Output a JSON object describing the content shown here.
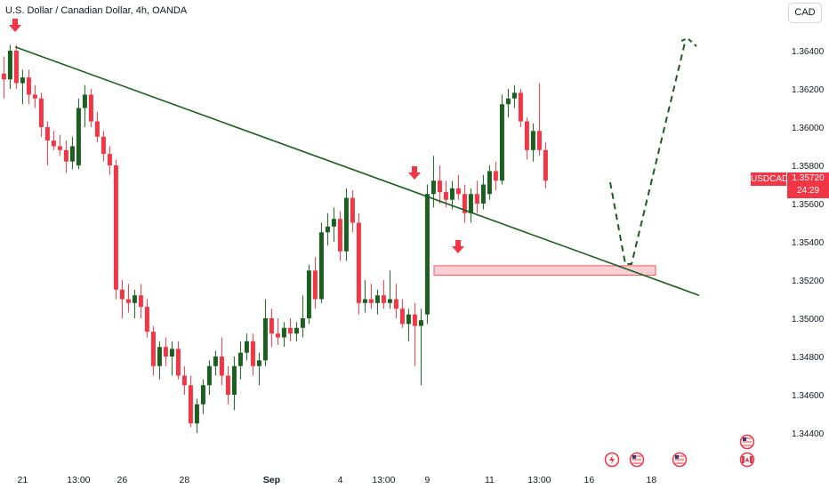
{
  "header": {
    "title": "U.S. Dollar / Canadian Dollar, 4h, OANDA",
    "currency": "CAD"
  },
  "price_tag": {
    "symbol": "USDCAD",
    "price": "1.35720",
    "countdown": "24:29"
  },
  "colors": {
    "up": "#1b5e20",
    "down": "#f23645",
    "trendline": "#1b5e20",
    "zone_fill": "#f8c8cc",
    "zone_border": "#f23645",
    "arrow": "#f23645"
  },
  "chart_data": {
    "type": "candlestick",
    "title": "U.S. Dollar / Canadian Dollar, 4h, OANDA",
    "symbol": "USDCAD",
    "timeframe": "4h",
    "ylim": [
      1.343,
      1.3668
    ],
    "y_ticks": [
      "1.36400",
      "1.36200",
      "1.36000",
      "1.35800",
      "1.35600",
      "1.35400",
      "1.35200",
      "1.35000",
      "1.34800",
      "1.34600",
      "1.34400"
    ],
    "y_tick_values": [
      1.364,
      1.362,
      1.36,
      1.358,
      1.356,
      1.354,
      1.352,
      1.35,
      1.348,
      1.346,
      1.344
    ],
    "x_ticks": [
      {
        "label": "21",
        "index": 3,
        "bold": false
      },
      {
        "label": "13:00",
        "index": 12,
        "bold": false
      },
      {
        "label": "26",
        "index": 19,
        "bold": false
      },
      {
        "label": "28",
        "index": 29,
        "bold": false
      },
      {
        "label": "Sep",
        "index": 43,
        "bold": true
      },
      {
        "label": "4",
        "index": 54,
        "bold": false
      },
      {
        "label": "13:00",
        "index": 61,
        "bold": false
      },
      {
        "label": "9",
        "index": 68,
        "bold": false
      },
      {
        "label": "11",
        "index": 78,
        "bold": false
      },
      {
        "label": "13:00",
        "index": 86,
        "bold": false
      },
      {
        "label": "16",
        "index": 94,
        "bold": false
      },
      {
        "label": "18",
        "index": 104,
        "bold": false
      }
    ],
    "candles": [
      [
        1.3628,
        1.3637,
        1.3615,
        1.3625
      ],
      [
        1.3625,
        1.3643,
        1.362,
        1.364
      ],
      [
        1.364,
        1.3643,
        1.362,
        1.3623
      ],
      [
        1.3623,
        1.363,
        1.3612,
        1.3626
      ],
      [
        1.3626,
        1.363,
        1.3612,
        1.3617
      ],
      [
        1.3617,
        1.3622,
        1.361,
        1.3615
      ],
      [
        1.3615,
        1.3618,
        1.3595,
        1.36
      ],
      [
        1.36,
        1.3603,
        1.358,
        1.3593
      ],
      [
        1.3593,
        1.3598,
        1.3588,
        1.359
      ],
      [
        1.359,
        1.3596,
        1.3585,
        1.3588
      ],
      [
        1.3588,
        1.3593,
        1.3576,
        1.3582
      ],
      [
        1.3582,
        1.3595,
        1.3578,
        1.359
      ],
      [
        1.358,
        1.3615,
        1.3578,
        1.361
      ],
      [
        1.361,
        1.3622,
        1.36,
        1.3617
      ],
      [
        1.3617,
        1.362,
        1.36,
        1.3603
      ],
      [
        1.3603,
        1.3608,
        1.3592,
        1.3595
      ],
      [
        1.3595,
        1.3598,
        1.3582,
        1.3586
      ],
      [
        1.3586,
        1.359,
        1.3575,
        1.358
      ],
      [
        1.358,
        1.3583,
        1.351,
        1.3515
      ],
      [
        1.3515,
        1.352,
        1.35,
        1.351
      ],
      [
        1.351,
        1.3518,
        1.3503,
        1.3508
      ],
      [
        1.3508,
        1.3515,
        1.35,
        1.3512
      ],
      [
        1.3512,
        1.3518,
        1.35,
        1.3506
      ],
      [
        1.3506,
        1.351,
        1.349,
        1.3493
      ],
      [
        1.3493,
        1.3496,
        1.347,
        1.3475
      ],
      [
        1.3475,
        1.3488,
        1.3468,
        1.3485
      ],
      [
        1.3485,
        1.349,
        1.3475,
        1.348
      ],
      [
        1.348,
        1.3488,
        1.347,
        1.3484
      ],
      [
        1.3484,
        1.3488,
        1.3468,
        1.347
      ],
      [
        1.347,
        1.3475,
        1.346,
        1.3465
      ],
      [
        1.3465,
        1.347,
        1.3443,
        1.3445
      ],
      [
        1.3445,
        1.3458,
        1.344,
        1.3455
      ],
      [
        1.3455,
        1.3468,
        1.345,
        1.3465
      ],
      [
        1.3465,
        1.3478,
        1.346,
        1.3475
      ],
      [
        1.3475,
        1.3483,
        1.347,
        1.348
      ],
      [
        1.348,
        1.349,
        1.3465,
        1.347
      ],
      [
        1.347,
        1.3475,
        1.3455,
        1.346
      ],
      [
        1.346,
        1.348,
        1.3452,
        1.3475
      ],
      [
        1.3475,
        1.3488,
        1.3468,
        1.3482
      ],
      [
        1.3482,
        1.3492,
        1.3478,
        1.3488
      ],
      [
        1.3488,
        1.3492,
        1.347,
        1.3475
      ],
      [
        1.3475,
        1.3482,
        1.3465,
        1.3478
      ],
      [
        1.3478,
        1.351,
        1.3475,
        1.35
      ],
      [
        1.35,
        1.3505,
        1.3485,
        1.3492
      ],
      [
        1.3492,
        1.35,
        1.3486,
        1.349
      ],
      [
        1.349,
        1.3498,
        1.3485,
        1.3495
      ],
      [
        1.3495,
        1.35,
        1.3488,
        1.3492
      ],
      [
        1.3492,
        1.3498,
        1.3488,
        1.3495
      ],
      [
        1.3495,
        1.3512,
        1.349,
        1.35
      ],
      [
        1.35,
        1.3528,
        1.3497,
        1.3525
      ],
      [
        1.3525,
        1.3532,
        1.3505,
        1.351
      ],
      [
        1.351,
        1.355,
        1.3508,
        1.3545
      ],
      [
        1.3545,
        1.3555,
        1.3538,
        1.3548
      ],
      [
        1.3548,
        1.3558,
        1.354,
        1.3552
      ],
      [
        1.3552,
        1.3556,
        1.353,
        1.3535
      ],
      [
        1.3535,
        1.3568,
        1.353,
        1.3563
      ],
      [
        1.3563,
        1.3567,
        1.3545,
        1.355
      ],
      [
        1.355,
        1.3555,
        1.3502,
        1.3508
      ],
      [
        1.3508,
        1.352,
        1.3503,
        1.351
      ],
      [
        1.351,
        1.3518,
        1.3505,
        1.3508
      ],
      [
        1.3508,
        1.3515,
        1.3502,
        1.3512
      ],
      [
        1.3512,
        1.352,
        1.3505,
        1.3508
      ],
      [
        1.3508,
        1.3525,
        1.3505,
        1.351
      ],
      [
        1.351,
        1.3518,
        1.35,
        1.3505
      ],
      [
        1.3505,
        1.351,
        1.3495,
        1.3497
      ],
      [
        1.3497,
        1.3505,
        1.3488,
        1.3502
      ],
      [
        1.3502,
        1.3508,
        1.3475,
        1.3496
      ],
      [
        1.3496,
        1.3505,
        1.3465,
        1.3499
      ],
      [
        1.3502,
        1.357,
        1.3497,
        1.3565
      ],
      [
        1.3565,
        1.3585,
        1.3558,
        1.3572
      ],
      [
        1.3572,
        1.358,
        1.356,
        1.3566
      ],
      [
        1.3566,
        1.3572,
        1.3558,
        1.3562
      ],
      [
        1.3562,
        1.3572,
        1.3557,
        1.3568
      ],
      [
        1.3568,
        1.3575,
        1.3562,
        1.3565
      ],
      [
        1.3565,
        1.357,
        1.355,
        1.3555
      ],
      [
        1.3555,
        1.3568,
        1.355,
        1.3565
      ],
      [
        1.3565,
        1.3572,
        1.3555,
        1.356
      ],
      [
        1.356,
        1.3575,
        1.3557,
        1.357
      ],
      [
        1.3565,
        1.358,
        1.3562,
        1.3577
      ],
      [
        1.3577,
        1.3582,
        1.3567,
        1.3572
      ],
      [
        1.3572,
        1.3617,
        1.357,
        1.3612
      ],
      [
        1.3612,
        1.362,
        1.3605,
        1.3615
      ],
      [
        1.3615,
        1.3622,
        1.361,
        1.3618
      ],
      [
        1.3618,
        1.362,
        1.36,
        1.3603
      ],
      [
        1.3603,
        1.3605,
        1.3583,
        1.3588
      ],
      [
        1.3588,
        1.3602,
        1.3582,
        1.3598
      ],
      [
        1.3598,
        1.3623,
        1.3585,
        1.3588
      ],
      [
        1.3588,
        1.3592,
        1.3568,
        1.3572
      ]
    ],
    "trendline": [
      {
        "index": 1,
        "price": 1.3642
      },
      {
        "index": 108,
        "price": 1.3512
      }
    ],
    "zone": {
      "from_index": 60,
      "to_index": 108,
      "price_high": 1.35275,
      "price_low": 1.35225
    },
    "projection": [
      {
        "index": 86,
        "price": 1.357
      },
      {
        "index": 90,
        "price": 1.353
      },
      {
        "index": 92,
        "price": 1.353
      },
      {
        "index": 98,
        "price": 1.3645
      }
    ],
    "signal_arrows": [
      {
        "index": 1,
        "price": 1.365
      },
      {
        "index": 57,
        "price": 1.3574
      },
      {
        "index": 63,
        "price": 1.3531
      }
    ],
    "event_markers": [
      {
        "index": 84,
        "icon": "lightning-icon"
      },
      {
        "index": 88,
        "icon": "us-flag-icon"
      },
      {
        "index": 94,
        "icon": "us-flag-icon"
      },
      {
        "index": 104,
        "icon": "us-flag-icon",
        "stacked": "canada-flag-icon"
      }
    ]
  }
}
